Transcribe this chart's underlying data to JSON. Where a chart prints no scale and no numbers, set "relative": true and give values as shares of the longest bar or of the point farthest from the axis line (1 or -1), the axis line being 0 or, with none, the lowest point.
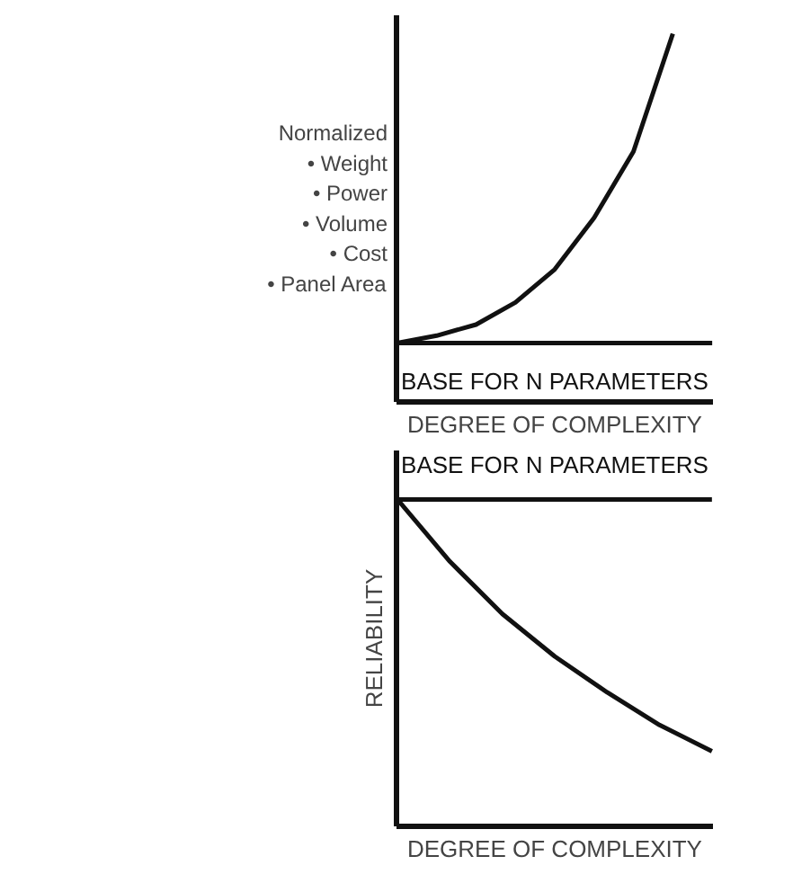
{
  "chart_data": [
    {
      "type": "line",
      "relative": true,
      "ylabel": "Normalized\n• Weight\n• Power\n• Volume\n• Cost\n• Panel Area",
      "xlabel": "DEGREE OF COMPLEXITY",
      "annotations": [
        "BASE FOR N PARAMETERS"
      ],
      "categories": [
        null,
        null,
        null,
        null,
        null,
        null,
        null,
        null,
        null
      ],
      "series": [
        {
          "color": "#111111",
          "values": [
            0.16,
            0.16,
            0.16,
            0.16,
            0.16,
            0.16,
            0.16,
            0.16,
            0.16
          ]
        },
        {
          "color": "#111111",
          "values": [
            0.16,
            0.18,
            0.21,
            0.27,
            0.36,
            0.5,
            0.68,
            1.0,
            null
          ]
        }
      ]
    },
    {
      "type": "line",
      "relative": true,
      "ylabel": "RELIABILITY",
      "xlabel": "DEGREE OF COMPLEXITY",
      "annotations": [
        "BASE FOR N PARAMETERS"
      ],
      "categories": [
        null,
        null,
        null,
        null,
        null,
        null,
        null
      ],
      "series": [
        {
          "color": "#111111",
          "values": [
            1.0,
            1.0,
            1.0,
            1.0,
            1.0,
            1.0,
            1.0
          ]
        },
        {
          "color": "#111111",
          "values": [
            1.0,
            0.81,
            0.65,
            0.52,
            0.41,
            0.31,
            0.23
          ]
        }
      ]
    }
  ]
}
